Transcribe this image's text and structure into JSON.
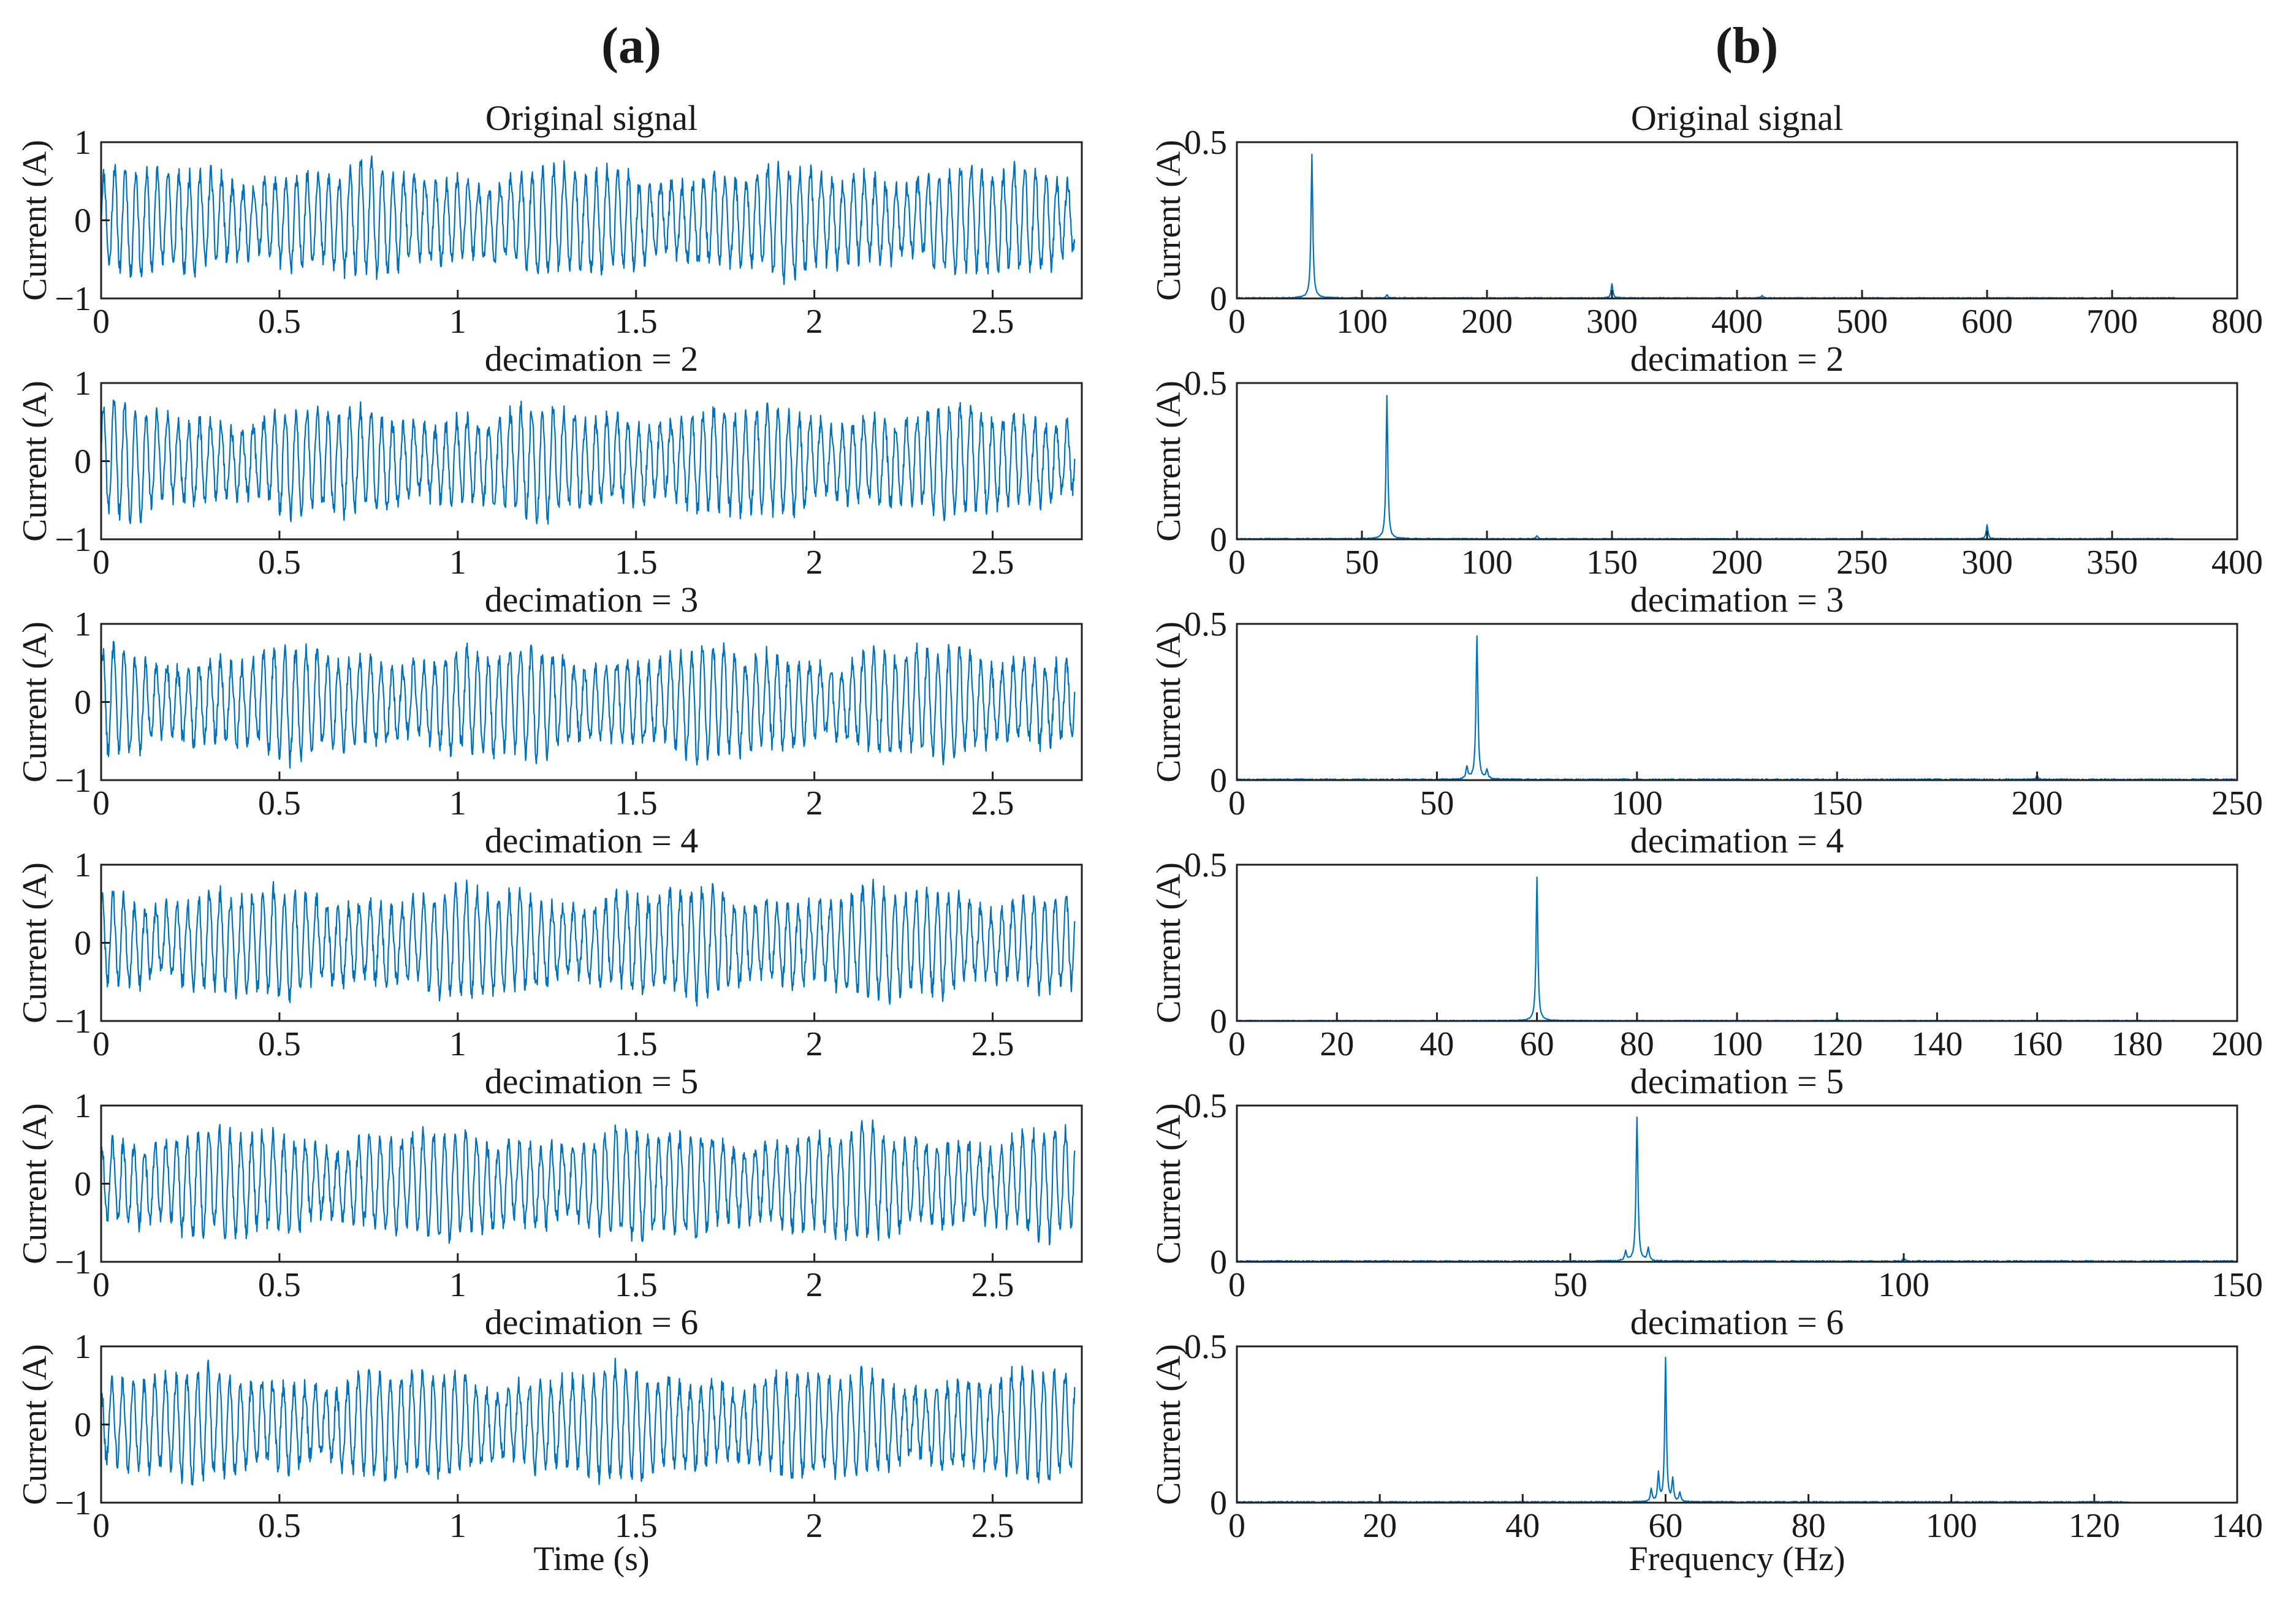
{
  "figure": {
    "panel_labels": [
      "(a)",
      "(b)"
    ],
    "series_color": "#0072BD"
  },
  "chart_data": [
    {
      "id": "a1",
      "type": "line",
      "title": "Original signal",
      "xlabel": "",
      "ylabel": "Current (A)",
      "xlim": [
        0,
        2.75
      ],
      "ylim": [
        -1,
        1
      ],
      "xticks": [
        0,
        0.5,
        1,
        1.5,
        2,
        2.5
      ],
      "xticklabels": [
        "0",
        "0.5",
        "1",
        "1.5",
        "2",
        "2.5"
      ],
      "yticks": [
        -1,
        0,
        1
      ],
      "yticklabels": [
        "−1",
        "0",
        "1"
      ],
      "signal": {
        "duration": 2.73,
        "fundamental_hz": 60,
        "amplitude": 0.55,
        "harmonic_hz": 300,
        "harmonic_amp": 0.05
      }
    },
    {
      "id": "a2",
      "type": "line",
      "title": "decimation = 2",
      "xlabel": "",
      "ylabel": "Current (A)",
      "xlim": [
        0,
        2.75
      ],
      "ylim": [
        -1,
        1
      ],
      "xticks": [
        0,
        0.5,
        1,
        1.5,
        2,
        2.5
      ],
      "xticklabels": [
        "0",
        "0.5",
        "1",
        "1.5",
        "2",
        "2.5"
      ],
      "yticks": [
        -1,
        0,
        1
      ],
      "yticklabels": [
        "−1",
        "0",
        "1"
      ],
      "signal": {
        "duration": 2.73,
        "fundamental_hz": 60,
        "amplitude": 0.55,
        "harmonic_hz": 300,
        "harmonic_amp": 0.05
      }
    },
    {
      "id": "a3",
      "type": "line",
      "title": "decimation = 3",
      "xlabel": "",
      "ylabel": "Current (A)",
      "xlim": [
        0,
        2.75
      ],
      "ylim": [
        -1,
        1
      ],
      "xticks": [
        0,
        0.5,
        1,
        1.5,
        2,
        2.5
      ],
      "xticklabels": [
        "0",
        "0.5",
        "1",
        "1.5",
        "2",
        "2.5"
      ],
      "yticks": [
        -1,
        0,
        1
      ],
      "yticklabels": [
        "−1",
        "0",
        "1"
      ],
      "signal": {
        "duration": 2.73,
        "fundamental_hz": 60,
        "amplitude": 0.55,
        "harmonic_hz": 300,
        "harmonic_amp": 0.05
      }
    },
    {
      "id": "a4",
      "type": "line",
      "title": "decimation = 4",
      "xlabel": "",
      "ylabel": "Current (A)",
      "xlim": [
        0,
        2.75
      ],
      "ylim": [
        -1,
        1
      ],
      "xticks": [
        0,
        0.5,
        1,
        1.5,
        2,
        2.5
      ],
      "xticklabels": [
        "0",
        "0.5",
        "1",
        "1.5",
        "2",
        "2.5"
      ],
      "yticks": [
        -1,
        0,
        1
      ],
      "yticklabels": [
        "−1",
        "0",
        "1"
      ],
      "signal": {
        "duration": 2.73,
        "fundamental_hz": 60,
        "amplitude": 0.55,
        "harmonic_hz": 300,
        "harmonic_amp": 0.05
      }
    },
    {
      "id": "a5",
      "type": "line",
      "title": "decimation = 5",
      "xlabel": "",
      "ylabel": "Current (A)",
      "xlim": [
        0,
        2.75
      ],
      "ylim": [
        -1,
        1
      ],
      "xticks": [
        0,
        0.5,
        1,
        1.5,
        2,
        2.5
      ],
      "xticklabels": [
        "0",
        "0.5",
        "1",
        "1.5",
        "2",
        "2.5"
      ],
      "yticks": [
        -1,
        0,
        1
      ],
      "yticklabels": [
        "−1",
        "0",
        "1"
      ],
      "signal": {
        "duration": 2.73,
        "fundamental_hz": 60,
        "amplitude": 0.55,
        "harmonic_hz": 300,
        "harmonic_amp": 0.05
      }
    },
    {
      "id": "a6",
      "type": "line",
      "title": "decimation = 6",
      "xlabel": "Time (s)",
      "ylabel": "Current (A)",
      "xlim": [
        0,
        2.75
      ],
      "ylim": [
        -1,
        1
      ],
      "xticks": [
        0,
        0.5,
        1,
        1.5,
        2,
        2.5
      ],
      "xticklabels": [
        "0",
        "0.5",
        "1",
        "1.5",
        "2",
        "2.5"
      ],
      "yticks": [
        -1,
        0,
        1
      ],
      "yticklabels": [
        "−1",
        "0",
        "1"
      ],
      "signal": {
        "duration": 2.73,
        "fundamental_hz": 60,
        "amplitude": 0.55,
        "harmonic_hz": 300,
        "harmonic_amp": 0.05
      }
    },
    {
      "id": "b1",
      "type": "line",
      "title": "Original signal",
      "xlabel": "",
      "ylabel": "Current (A)",
      "xlim": [
        0,
        800
      ],
      "ylim": [
        0,
        0.5
      ],
      "xticks": [
        0,
        100,
        200,
        300,
        400,
        500,
        600,
        700,
        800
      ],
      "xticklabels": [
        "0",
        "100",
        "200",
        "300",
        "400",
        "500",
        "600",
        "700",
        "800"
      ],
      "yticks": [
        0,
        0.5
      ],
      "yticklabels": [
        "0",
        "0.5"
      ],
      "spectrum": {
        "max_freq": 750,
        "peaks": [
          {
            "freq": 60,
            "amp": 0.46
          },
          {
            "freq": 300,
            "amp": 0.045
          },
          {
            "freq": 120,
            "amp": 0.01
          },
          {
            "freq": 420,
            "amp": 0.008
          }
        ],
        "noise": 0.003
      }
    },
    {
      "id": "b2",
      "type": "line",
      "title": "decimation = 2",
      "xlabel": "",
      "ylabel": "Current (A)",
      "xlim": [
        0,
        400
      ],
      "ylim": [
        0,
        0.5
      ],
      "xticks": [
        0,
        50,
        100,
        150,
        200,
        250,
        300,
        350,
        400
      ],
      "xticklabels": [
        "0",
        "50",
        "100",
        "150",
        "200",
        "250",
        "300",
        "350",
        "400"
      ],
      "yticks": [
        0,
        0.5
      ],
      "yticklabels": [
        "0",
        "0.5"
      ],
      "spectrum": {
        "max_freq": 375,
        "peaks": [
          {
            "freq": 60,
            "amp": 0.46
          },
          {
            "freq": 300,
            "amp": 0.045
          },
          {
            "freq": 120,
            "amp": 0.01
          }
        ],
        "noise": 0.003
      }
    },
    {
      "id": "b3",
      "type": "line",
      "title": "decimation = 3",
      "xlabel": "",
      "ylabel": "Current (A)",
      "xlim": [
        0,
        250
      ],
      "ylim": [
        0,
        0.5
      ],
      "xticks": [
        0,
        50,
        100,
        150,
        200,
        250
      ],
      "xticklabels": [
        "0",
        "50",
        "100",
        "150",
        "200",
        "250"
      ],
      "yticks": [
        0,
        0.5
      ],
      "yticklabels": [
        "0",
        "0.5"
      ],
      "spectrum": {
        "max_freq": 250,
        "peaks": [
          {
            "freq": 60,
            "amp": 0.46
          },
          {
            "freq": 57.5,
            "amp": 0.04
          },
          {
            "freq": 62.5,
            "amp": 0.03
          },
          {
            "freq": 200,
            "amp": 0.012
          }
        ],
        "noise": 0.004
      }
    },
    {
      "id": "b4",
      "type": "line",
      "title": "decimation = 4",
      "xlabel": "",
      "ylabel": "Current (A)",
      "xlim": [
        0,
        200
      ],
      "ylim": [
        0,
        0.5
      ],
      "xticks": [
        0,
        20,
        40,
        60,
        80,
        100,
        120,
        140,
        160,
        180,
        200
      ],
      "xticklabels": [
        "0",
        "20",
        "40",
        "60",
        "80",
        "100",
        "120",
        "140",
        "160",
        "180",
        "200"
      ],
      "yticks": [
        0,
        0.5
      ],
      "yticklabels": [
        "0",
        "0.5"
      ],
      "spectrum": {
        "max_freq": 187.5,
        "peaks": [
          {
            "freq": 60,
            "amp": 0.46
          },
          {
            "freq": 120,
            "amp": 0.008
          }
        ],
        "noise": 0.002
      }
    },
    {
      "id": "b5",
      "type": "line",
      "title": "decimation = 5",
      "xlabel": "",
      "ylabel": "Current (A)",
      "xlim": [
        0,
        150
      ],
      "ylim": [
        0,
        0.5
      ],
      "xticks": [
        0,
        50,
        100,
        150
      ],
      "xticklabels": [
        "0",
        "50",
        "100",
        "150"
      ],
      "yticks": [
        0,
        0.5
      ],
      "yticklabels": [
        "0",
        "0.5"
      ],
      "spectrum": {
        "max_freq": 150,
        "peaks": [
          {
            "freq": 60,
            "amp": 0.46
          },
          {
            "freq": 58.3,
            "amp": 0.03
          },
          {
            "freq": 61.7,
            "amp": 0.04
          },
          {
            "freq": 100,
            "amp": 0.01
          }
        ],
        "noise": 0.004
      }
    },
    {
      "id": "b6",
      "type": "line",
      "title": "decimation = 6",
      "xlabel": "Frequency (Hz)",
      "ylabel": "Current (A)",
      "xlim": [
        0,
        140
      ],
      "ylim": [
        0,
        0.5
      ],
      "xticks": [
        0,
        20,
        40,
        60,
        80,
        100,
        120,
        140
      ],
      "xticklabels": [
        "0",
        "20",
        "40",
        "60",
        "80",
        "100",
        "120",
        "140"
      ],
      "yticks": [
        0,
        0.5
      ],
      "yticklabels": [
        "0",
        "0.5"
      ],
      "spectrum": {
        "max_freq": 125,
        "peaks": [
          {
            "freq": 60,
            "amp": 0.46
          },
          {
            "freq": 59,
            "amp": 0.09
          },
          {
            "freq": 61,
            "amp": 0.07
          },
          {
            "freq": 58,
            "amp": 0.04
          },
          {
            "freq": 62,
            "amp": 0.03
          }
        ],
        "noise": 0.004
      }
    }
  ]
}
